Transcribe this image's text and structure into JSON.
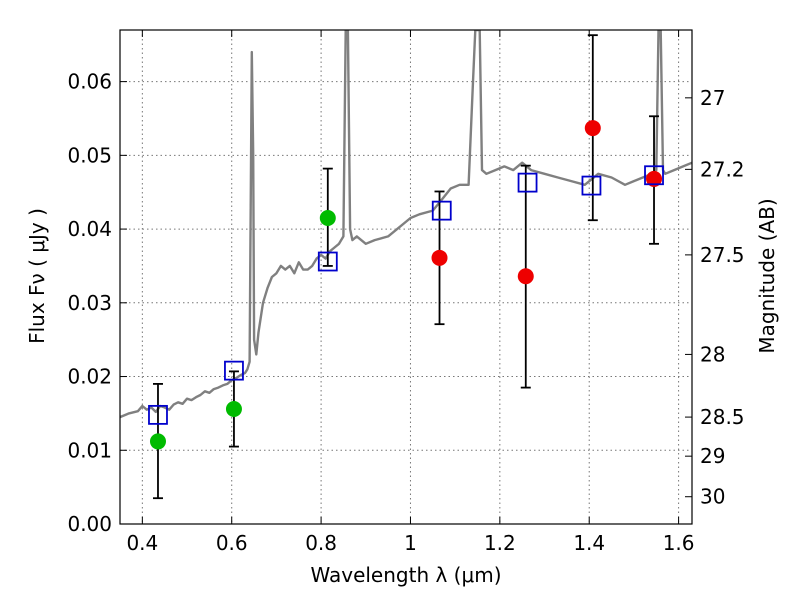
{
  "chart_data": {
    "type": "scatter",
    "xlabel": "Wavelength  λ (μm)",
    "ylabel": "Flux  Fν  ( μJy )",
    "ylabel2": "Magnitude (AB)",
    "xlim": [
      0.35,
      1.63
    ],
    "ylim": [
      0.0,
      0.067
    ],
    "grid": true,
    "xticks": [
      0.4,
      0.6,
      0.8,
      1.0,
      1.2,
      1.4,
      1.6
    ],
    "xtick_labels": [
      "0.4",
      "0.6",
      "0.8",
      "1",
      "1.2",
      "1.4",
      "1.6"
    ],
    "yticks": [
      0.0,
      0.01,
      0.02,
      0.03,
      0.04,
      0.05,
      0.06
    ],
    "ytick_labels": [
      "0.00",
      "0.01",
      "0.02",
      "0.03",
      "0.04",
      "0.05",
      "0.06"
    ],
    "mag_ticks": [
      {
        "label": "27",
        "value": 0.0578
      },
      {
        "label": "27.2",
        "value": 0.0481
      },
      {
        "label": "27.5",
        "value": 0.0365
      },
      {
        "label": "28",
        "value": 0.023
      },
      {
        "label": "28.5",
        "value": 0.0145
      },
      {
        "label": "29",
        "value": 0.0092
      },
      {
        "label": "30",
        "value": 0.0037
      }
    ],
    "colors": {
      "spectrum": "#808080",
      "green_points": "#00bb00",
      "red_points": "#ee0000",
      "model_squares": "#0000cc",
      "errorbars": "#000000",
      "grid": "#777777"
    },
    "series": [
      {
        "name": "spectrum",
        "kind": "line",
        "x": [
          0.35,
          0.37,
          0.39,
          0.4,
          0.41,
          0.42,
          0.43,
          0.44,
          0.45,
          0.46,
          0.47,
          0.48,
          0.49,
          0.5,
          0.51,
          0.52,
          0.53,
          0.54,
          0.55,
          0.56,
          0.57,
          0.58,
          0.59,
          0.6,
          0.61,
          0.62,
          0.63,
          0.635,
          0.64,
          0.645,
          0.648,
          0.65,
          0.655,
          0.66,
          0.67,
          0.68,
          0.69,
          0.7,
          0.71,
          0.72,
          0.73,
          0.74,
          0.75,
          0.76,
          0.77,
          0.78,
          0.79,
          0.8,
          0.81,
          0.82,
          0.83,
          0.84,
          0.85,
          0.855,
          0.86,
          0.865,
          0.87,
          0.88,
          0.9,
          0.92,
          0.95,
          0.97,
          1.0,
          1.02,
          1.05,
          1.07,
          1.09,
          1.11,
          1.13,
          1.14,
          1.145,
          1.15,
          1.155,
          1.16,
          1.17,
          1.19,
          1.21,
          1.23,
          1.25,
          1.27,
          1.3,
          1.33,
          1.36,
          1.39,
          1.42,
          1.45,
          1.48,
          1.5,
          1.52,
          1.54,
          1.55,
          1.555,
          1.56,
          1.565,
          1.57,
          1.59,
          1.61,
          1.63
        ],
        "y": [
          0.0145,
          0.015,
          0.0153,
          0.016,
          0.0155,
          0.0158,
          0.0152,
          0.016,
          0.0158,
          0.0155,
          0.0162,
          0.0165,
          0.0163,
          0.017,
          0.0168,
          0.0172,
          0.0175,
          0.018,
          0.0178,
          0.0183,
          0.0185,
          0.0188,
          0.019,
          0.0195,
          0.0198,
          0.0202,
          0.0205,
          0.021,
          0.022,
          0.064,
          0.05,
          0.025,
          0.023,
          0.026,
          0.03,
          0.032,
          0.0335,
          0.034,
          0.035,
          0.0345,
          0.035,
          0.034,
          0.0355,
          0.0345,
          0.0345,
          0.035,
          0.036,
          0.0365,
          0.036,
          0.037,
          0.0375,
          0.038,
          0.039,
          0.067,
          0.067,
          0.04,
          0.0385,
          0.039,
          0.038,
          0.0385,
          0.039,
          0.04,
          0.0415,
          0.042,
          0.0425,
          0.044,
          0.0455,
          0.046,
          0.046,
          0.06,
          0.067,
          0.067,
          0.067,
          0.048,
          0.0475,
          0.048,
          0.0485,
          0.048,
          0.049,
          0.048,
          0.0475,
          0.047,
          0.0465,
          0.046,
          0.0475,
          0.047,
          0.046,
          0.0465,
          0.047,
          0.0475,
          0.048,
          0.067,
          0.067,
          0.048,
          0.0475,
          0.048,
          0.0485,
          0.049
        ]
      },
      {
        "name": "green_points",
        "kind": "points",
        "x": [
          0.435,
          0.605,
          0.815
        ],
        "y": [
          0.0112,
          0.0156,
          0.0415
        ],
        "err_low": [
          0.0035,
          0.0105,
          0.035
        ],
        "err_high": [
          0.019,
          0.0207,
          0.0482
        ]
      },
      {
        "name": "red_points",
        "kind": "points",
        "x": [
          1.065,
          1.258,
          1.408,
          1.545
        ],
        "y": [
          0.0361,
          0.0336,
          0.0537,
          0.0468
        ],
        "err_low": [
          0.0271,
          0.0185,
          0.0412,
          0.038
        ],
        "err_high": [
          0.0451,
          0.0486,
          0.0663,
          0.0553
        ]
      },
      {
        "name": "model_squares",
        "kind": "squares",
        "x": [
          0.435,
          0.605,
          0.815,
          1.07,
          1.262,
          1.405,
          1.545
        ],
        "y": [
          0.0148,
          0.0208,
          0.0356,
          0.0425,
          0.0463,
          0.0459,
          0.0473
        ]
      }
    ]
  }
}
